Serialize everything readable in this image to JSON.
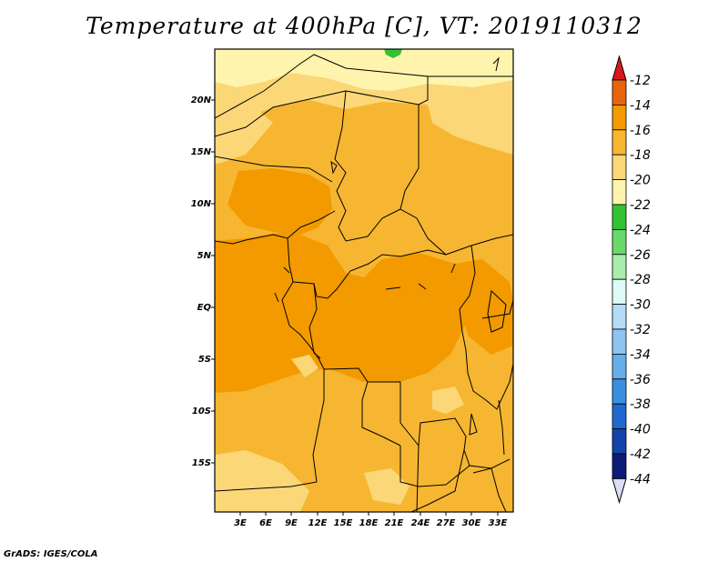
{
  "title": "Temperature at 400hPa [C], VT: 2019110312",
  "credit": "GrADS: IGES/COLA",
  "map": {
    "lat_labels": [
      "20N",
      "15N",
      "10N",
      "5N",
      "EQ",
      "5S",
      "10S",
      "15S"
    ],
    "lon_labels": [
      "3E",
      "6E",
      "9E",
      "12E",
      "15E",
      "18E",
      "21E",
      "24E",
      "27E",
      "30E",
      "33E"
    ]
  },
  "colorbar": {
    "levels": [
      "-12",
      "-14",
      "-16",
      "-18",
      "-20",
      "-22",
      "-24",
      "-26",
      "-28",
      "-30",
      "-32",
      "-34",
      "-36",
      "-38",
      "-40",
      "-42",
      "-44"
    ],
    "colors": [
      "#d7191c",
      "#e8640a",
      "#f29a00",
      "#f7b631",
      "#fbd777",
      "#fff4ad",
      "#33c233",
      "#6ad86a",
      "#a9ecac",
      "#ddfaf6",
      "#b4dcf5",
      "#8ec5f0",
      "#65aee9",
      "#3b8fe0",
      "#1f68cf",
      "#1444aa",
      "#0d1a78",
      "#dddcf7"
    ]
  },
  "fill_colors": {
    "darkest": "#f29a00",
    "mid": "#f7b631",
    "light": "#fbd777",
    "lightest": "#fff4ad",
    "green": "#33c233"
  }
}
